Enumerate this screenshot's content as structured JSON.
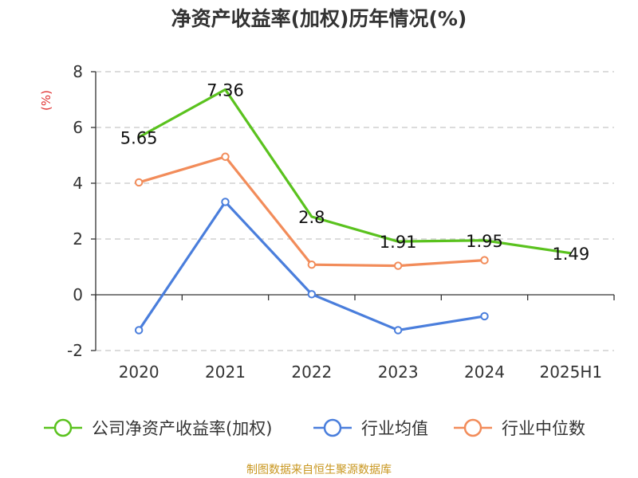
{
  "chart_data": {
    "type": "line",
    "title": "净资产收益率(加权)历年情况(%)",
    "ylabel": "(%)",
    "categories": [
      "2020",
      "2021",
      "2022",
      "2023",
      "2024",
      "2025H1"
    ],
    "yticks": [
      "8",
      "6",
      "4",
      "2",
      "0",
      "-2"
    ],
    "ylim": [
      -2,
      8
    ],
    "grid": true,
    "legend_position": "bottom",
    "series": [
      {
        "name": "公司净资产收益率(加权)",
        "color": "#5ac21e",
        "values": [
          5.65,
          7.36,
          2.8,
          1.91,
          1.95,
          1.49
        ],
        "labels": [
          "5.65",
          "7.36",
          "2.8",
          "1.91",
          "1.95",
          "1.49"
        ],
        "markers": false
      },
      {
        "name": "行业均值",
        "color": "#4a7edc",
        "values": [
          -1.27,
          3.33,
          0.02,
          -1.27,
          -0.77,
          null
        ],
        "markers": true
      },
      {
        "name": "行业中位数",
        "color": "#f28c5a",
        "values": [
          4.03,
          4.95,
          1.08,
          1.04,
          1.24,
          null
        ],
        "markers": true
      }
    ],
    "source": "制图数据来自恒生聚源数据库"
  }
}
